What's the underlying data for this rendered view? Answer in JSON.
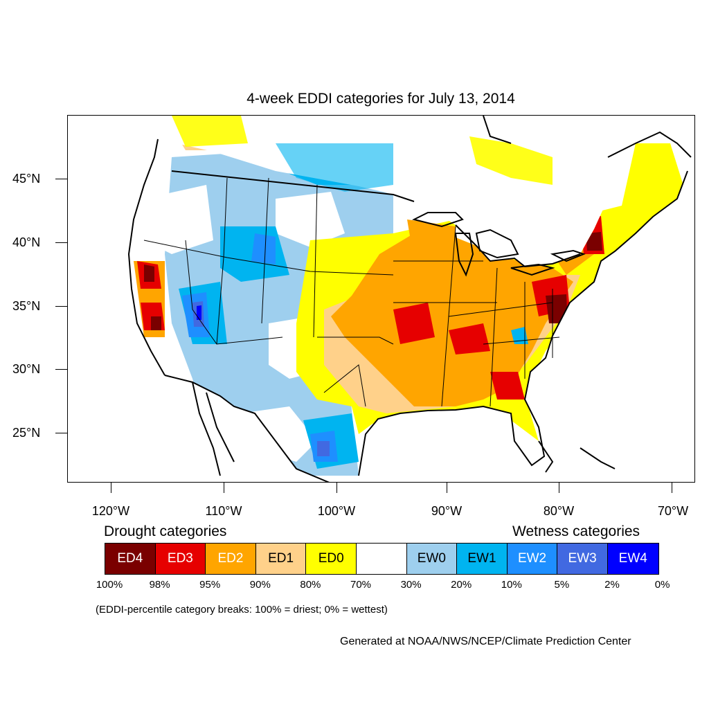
{
  "title": "4-week EDDI categories for July 13, 2014",
  "lat_labels": [
    "45°N",
    "40°N",
    "35°N",
    "30°N",
    "25°N"
  ],
  "lon_labels": [
    "120°W",
    "110°W",
    "100°W",
    "90°W",
    "80°W",
    "70°W"
  ],
  "legend": {
    "drought_heading": "Drought categories",
    "wetness_heading": "Wetness categories",
    "categories": [
      {
        "label": "ED4",
        "color": "#7a0000",
        "text_color": "#ffffff"
      },
      {
        "label": "ED3",
        "color": "#e60000",
        "text_color": "#ffffff"
      },
      {
        "label": "ED2",
        "color": "#ffa500",
        "text_color": "#ffffff"
      },
      {
        "label": "ED1",
        "color": "#ffd18a",
        "text_color": "#000000"
      },
      {
        "label": "ED0",
        "color": "#ffff00",
        "text_color": "#000000"
      },
      {
        "label": "",
        "color": "#ffffff",
        "text_color": "#000000"
      },
      {
        "label": "EW0",
        "color": "#9ecfee",
        "text_color": "#000000"
      },
      {
        "label": "EW1",
        "color": "#00b4f0",
        "text_color": "#000000"
      },
      {
        "label": "EW2",
        "color": "#1e8fff",
        "text_color": "#ffffff"
      },
      {
        "label": "EW3",
        "color": "#4169e1",
        "text_color": "#ffffff"
      },
      {
        "label": "EW4",
        "color": "#0000ff",
        "text_color": "#ffffff"
      }
    ],
    "percentiles": [
      "100%",
      "98%",
      "95%",
      "90%",
      "80%",
      "70%",
      "30%",
      "20%",
      "10%",
      "5%",
      "2%",
      "0%"
    ]
  },
  "note": "(EDDI-percentile category breaks: 100% = driest; 0% = wettest)",
  "credit": "Generated at NOAA/NWS/NCEP/Climate Prediction Center"
}
